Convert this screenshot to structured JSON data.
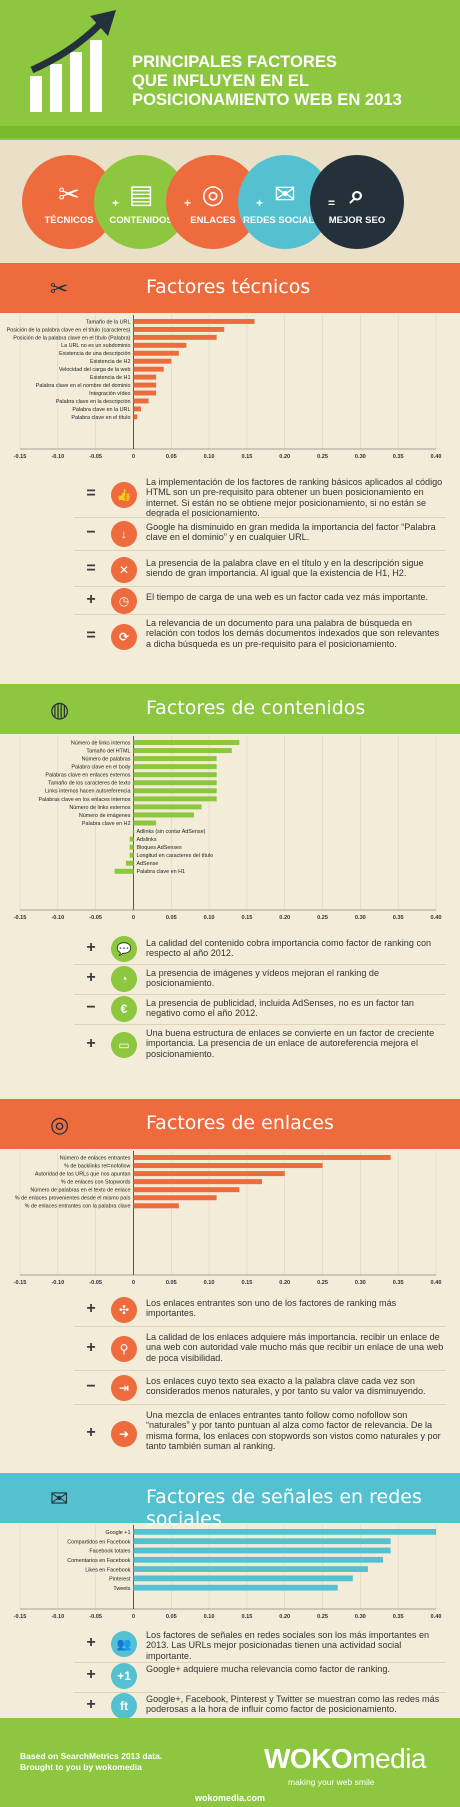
{
  "header": {
    "title": [
      "PRINCIPALES FACTORES",
      "QUE INFLUYEN EN EL",
      "POSICIONAMIENTO WEB EN 2013"
    ]
  },
  "circles": [
    {
      "label": "TÉCNICOS",
      "color": "#ee6b3e",
      "icon": "tools-icon",
      "glyph": "✂"
    },
    {
      "label": "CONTENIDOS",
      "color": "#8dc63f",
      "icon": "presentation-icon",
      "glyph": "▤"
    },
    {
      "label": "ENLACES",
      "color": "#ee6b3e",
      "icon": "target-icon",
      "glyph": "◎"
    },
    {
      "label": "REDES SOCIALES",
      "color": "#55c1d0",
      "icon": "chat-icon",
      "glyph": "✉"
    },
    {
      "label": "MEJOR SEO",
      "color": "#24303a",
      "icon": "search-icon",
      "glyph": "⌕"
    }
  ],
  "operators": [
    "+",
    "+",
    "+",
    "="
  ],
  "sections": {
    "tecnicos": {
      "title": "Factores técnicos",
      "color": "#ee6b3e",
      "icon": "tools-icon"
    },
    "contenidos": {
      "title": "Factores de contenidos",
      "color": "#8dc63f",
      "icon": "globe-icon"
    },
    "enlaces": {
      "title": "Factores de enlaces",
      "color": "#ee6b3e",
      "icon": "target-icon"
    },
    "redes": {
      "title": "Factores de señales en redes sociales",
      "color": "#55c1d0",
      "icon": "chat-icon"
    }
  },
  "chart_data": [
    {
      "type": "bar",
      "orientation": "horizontal",
      "color": "#ee6b3e",
      "xlim": [
        -0.15,
        0.4
      ],
      "ticks": [
        "-0.15",
        "-0.10",
        "-0.05",
        "0",
        "0.05",
        "0.10",
        "0.15",
        "0.20",
        "0.25",
        "0.30",
        "0.35",
        "0.40"
      ],
      "categories": [
        "Tamaño de la URL",
        "Posición de la palabra clave en el título (caracteres)",
        "Posición de la palabra clave en el título (Palabra)",
        "La URL no es un subdominio",
        "Existencia de una descripción",
        "Existencia de H2",
        "Velocidad del carga de la web",
        "Existencia de H1",
        "Palabra clave en el nombre del dominio",
        "Integración vídeo",
        "Palabra clave en la descripción",
        "Palabra clave en la URL",
        "Palabra clave en el título"
      ],
      "values": [
        0.16,
        0.12,
        0.11,
        0.07,
        0.06,
        0.05,
        0.04,
        0.03,
        0.03,
        0.03,
        0.02,
        0.01,
        0.005
      ]
    },
    {
      "type": "bar",
      "orientation": "horizontal",
      "color": "#8dc63f",
      "xlim": [
        -0.15,
        0.4
      ],
      "ticks": [
        "-0.15",
        "-0.10",
        "-0.05",
        "0",
        "0.05",
        "0.10",
        "0.15",
        "0.20",
        "0.25",
        "0.30",
        "0.35",
        "0.40"
      ],
      "categories": [
        "Número de links internos",
        "Tamaño del HTML",
        "Número de palabras",
        "Palabra clave en el body",
        "Palabras clave en enlaces externos",
        "Tamaño de los caracteres de texto",
        "Links internos hacen autoreferencia",
        "Palabras clave en los enlaces internos",
        "Número de links externos",
        "Número de imágenes",
        "Palabra clave en H2",
        "Adlinks (sin contar AdSense)",
        "Adslinks",
        "Bloques AdSenses",
        "Longitud en caracteres del título",
        "AdSense",
        "Palabra clave en H1"
      ],
      "values": [
        0.14,
        0.13,
        0.11,
        0.11,
        0.11,
        0.11,
        0.11,
        0.11,
        0.09,
        0.08,
        0.03,
        0.0,
        -0.005,
        -0.005,
        -0.005,
        -0.01,
        -0.025
      ]
    },
    {
      "type": "bar",
      "orientation": "horizontal",
      "color": "#ee6b3e",
      "xlim": [
        -0.15,
        0.4
      ],
      "ticks": [
        "-0.15",
        "-0.10",
        "-0.05",
        "0",
        "0.05",
        "0.10",
        "0.15",
        "0.20",
        "0.25",
        "0.30",
        "0.35",
        "0.40"
      ],
      "categories": [
        "Número de enlaces entrantes",
        "% de backlinks rel=nofollow",
        "Autoridad de las URLs que nos apuntan",
        "% de enlaces con Stopwords",
        "Número de palabras en el texto de enlace",
        "% de enlaces provenientes desde el mismo país",
        "% de enlaces entrantes con la palabra clave"
      ],
      "values": [
        0.34,
        0.25,
        0.2,
        0.17,
        0.14,
        0.11,
        0.06
      ]
    },
    {
      "type": "bar",
      "orientation": "horizontal",
      "color": "#55c1d0",
      "xlim": [
        -0.15,
        0.4
      ],
      "ticks": [
        "-0.15",
        "-0.10",
        "-0.05",
        "0",
        "0.05",
        "0.10",
        "0.15",
        "0.20",
        "0.25",
        "0.30",
        "0.35",
        "0.40"
      ],
      "categories": [
        "Google +1",
        "Compartidos en Facebook",
        "Facebook totales",
        "Comentarios en Facebook",
        "Likes en Facebook",
        "Pinterest",
        "Tweets"
      ],
      "values": [
        0.4,
        0.34,
        0.34,
        0.33,
        0.31,
        0.29,
        0.27
      ]
    }
  ],
  "notes": {
    "tecnicos": [
      {
        "sym": "=",
        "icon": "thumbs-up-icon",
        "glyph": "👍",
        "text": "La implementación de los factores de ranking básicos aplicados al código HTML son un pre-requisito para obtener un buen posicionamiento en internet. Si están no se obtiene mejor posicionamiento, si no están se degrada el posicionamiento."
      },
      {
        "sym": "−",
        "icon": "arrow-down-icon",
        "glyph": "↓",
        "text": "Google ha disminuido en gran medida la importancia del factor “Palabra clave en el dominio” y en cualquier URL."
      },
      {
        "sym": "=",
        "icon": "expand-icon",
        "glyph": "✕",
        "text": "La presencia de la palabra clave en el título y en la descripción sigue siendo de gran importancia. Al igual que la existencia de H1, H2."
      },
      {
        "sym": "+",
        "icon": "clock-icon",
        "glyph": "◷",
        "text": "El tiempo de carga de una web es un factor cada vez más importante."
      },
      {
        "sym": "=",
        "icon": "refresh-icon",
        "glyph": "⟳",
        "text": "La relevancia de un documento para una palabra de búsqueda en relación con todos los demás documentos indexados que son relevantes a dicha búsqueda es un pre-requisito para el posicionamiento."
      }
    ],
    "contenidos": [
      {
        "sym": "+",
        "icon": "chat-bubble-icon",
        "glyph": "💬",
        "text": "La calidad del contenido cobra importancia como factor de ranking con respecto al año 2012."
      },
      {
        "sym": "+",
        "icon": "pie-chart-icon",
        "glyph": "◔",
        "text": "La presencia de imágenes y vídeos mejoran el ranking de posicionamiento."
      },
      {
        "sym": "−",
        "icon": "euro-icon",
        "glyph": "€",
        "text": "La presencia de publicidad, incluida AdSenses, no es un factor tan negativo como el año 2012."
      },
      {
        "sym": "+",
        "icon": "folder-icon",
        "glyph": "▭",
        "text": "Una buena estructura de enlaces se convierte en un factor de creciente importancia. La presencia de un enlace de autoreferencia mejora el posicionamiento."
      }
    ],
    "enlaces": [
      {
        "sym": "+",
        "icon": "network-icon",
        "glyph": "✣",
        "text": "Los enlaces entrantes son uno de los factores de ranking más importantes."
      },
      {
        "sym": "+",
        "icon": "map-pin-icon",
        "glyph": "⚲",
        "text": "La calidad de los enlaces adquiere más importancia. recibir un enlace de una web con autoridad vale mucho más que recibir un enlace de una web de poca visibilidad."
      },
      {
        "sym": "−",
        "icon": "share-icon",
        "glyph": "⇥",
        "text": "Los enlaces cuyo texto sea exacto a la palabra clave cada vez son considerados menos naturales, y por tanto su valor va disminuyendo."
      },
      {
        "sym": "+",
        "icon": "arrow-right-icon",
        "glyph": "➜",
        "text": "Una mezcla de enlaces entrantes tanto follow como nofollow son “naturales” y por tanto puntuan al alza como factor de relevancia. De la misma forma, los enlaces con stopwords son vistos como naturales y por tanto también suman al ranking."
      }
    ],
    "redes": [
      {
        "sym": "+",
        "icon": "people-icon",
        "glyph": "👥",
        "text": "Los factores de señales en redes sociales son los más importantes en 2013. Las URLs mejor posicionadas tienen una actividad social importante."
      },
      {
        "sym": "+",
        "icon": "plus-one-icon",
        "glyph": "+1",
        "text": "Google+ adquiere mucha relevancia como factor de ranking."
      },
      {
        "sym": "+",
        "icon": "social-icons-icon",
        "glyph": "ft",
        "text": "Google+, Facebook, Pinterest y Twitter se muestran como las redes más poderosas a la hora de influir como factor de posicionamiento."
      }
    ]
  },
  "footer": {
    "credit1": "Based on SearchMetrics 2013 data.",
    "credit2": "Brought to you by wokomedia",
    "logo_bold": "WOKO",
    "logo_light": "media",
    "tagline": "making your web smile",
    "url": "wokomedia.com"
  }
}
